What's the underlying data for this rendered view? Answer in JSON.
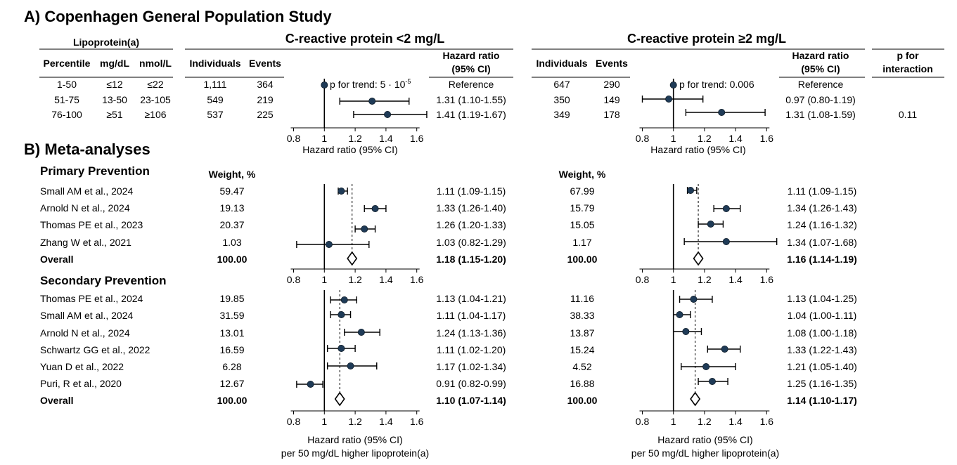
{
  "section_a": {
    "title": "A) Copenhagen General Population Study",
    "lpa_header": "Lipoprotein(a)",
    "col_percentile": "Percentile",
    "col_mgdl": "mg/dL",
    "col_nmol": "nmol/L",
    "panel_left_title": "C-reactive protein <2 mg/L",
    "panel_right_title": "C-reactive protein ≥2 mg/L",
    "col_individuals": "Individuals",
    "col_events": "Events",
    "col_hr_line1": "Hazard ratio",
    "col_hr_line2": "(95% CI)",
    "col_pint_line1": "p for",
    "col_pint_line2": "interaction",
    "ptrend_left": "p for trend: 5 · 10",
    "ptrend_left_exp": "-5",
    "ptrend_right": "p for trend: 0.006",
    "p_interaction": "0.11",
    "xlabel": "Hazard ratio (95% CI)",
    "rows": [
      {
        "percentile": "1-50",
        "mgdl": "≤12",
        "nmol": "≤22",
        "l_ind": "1,111",
        "l_ev": "364",
        "l_hr": "Reference",
        "r_ind": "647",
        "r_ev": "290",
        "r_hr": "Reference"
      },
      {
        "percentile": "51-75",
        "mgdl": "13-50",
        "nmol": "23-105",
        "l_ind": "549",
        "l_ev": "219",
        "l_hr": "1.31 (1.10-1.55)",
        "r_ind": "350",
        "r_ev": "149",
        "r_hr": "0.97 (0.80-1.19)"
      },
      {
        "percentile": "76-100",
        "mgdl": "≥51",
        "nmol": "≥106",
        "l_ind": "537",
        "l_ev": "225",
        "l_hr": "1.41 (1.19-1.67)",
        "r_ind": "349",
        "r_ev": "178",
        "r_hr": "1.31 (1.08-1.59)"
      }
    ]
  },
  "section_b": {
    "title": "B) Meta-analyses",
    "weight_header": "Weight, %",
    "primary_title": "Primary Prevention",
    "secondary_title": "Secondary Prevention",
    "xlabel_line1": "Hazard ratio (95% CI)",
    "xlabel_line2": "per 50 mg/dL higher lipoprotein(a)",
    "primary": [
      {
        "study": "Small AM et al., 2024",
        "lw": "59.47",
        "lhr": "1.11 (1.09-1.15)",
        "rw": "67.99",
        "rhr": "1.11 (1.09-1.15)"
      },
      {
        "study": "Arnold N et al., 2024",
        "lw": "19.13",
        "lhr": "1.33 (1.26-1.40)",
        "rw": "15.79",
        "rhr": "1.34 (1.26-1.43)"
      },
      {
        "study": "Thomas PE et al., 2023",
        "lw": "20.37",
        "lhr": "1.26 (1.20-1.33)",
        "rw": "15.05",
        "rhr": "1.24 (1.16-1.32)"
      },
      {
        "study": "Zhang W et al., 2021",
        "lw": "1.03",
        "lhr": "1.03 (0.82-1.29)",
        "rw": "1.17",
        "rhr": "1.34 (1.07-1.68)"
      },
      {
        "study": "Overall",
        "lw": "100.00",
        "lhr": "1.18 (1.15-1.20)",
        "rw": "100.00",
        "rhr": "1.16 (1.14-1.19)",
        "overall": true
      }
    ],
    "secondary": [
      {
        "study": "Thomas PE et al., 2024",
        "lw": "19.85",
        "lhr": "1.13 (1.04-1.21)",
        "rw": "11.16",
        "rhr": "1.13 (1.04-1.25)"
      },
      {
        "study": "Small AM et al., 2024",
        "lw": "31.59",
        "lhr": "1.11 (1.04-1.17)",
        "rw": "38.33",
        "rhr": "1.04 (1.00-1.11)"
      },
      {
        "study": "Arnold N et al., 2024",
        "lw": "13.01",
        "lhr": "1.24 (1.13-1.36)",
        "rw": "13.87",
        "rhr": "1.08 (1.00-1.18)"
      },
      {
        "study": "Schwartz GG et al., 2022",
        "lw": "16.59",
        "lhr": "1.11 (1.02-1.20)",
        "rw": "15.24",
        "rhr": "1.33 (1.22-1.43)"
      },
      {
        "study": "Yuan  D et al., 2022",
        "lw": "6.28",
        "lhr": "1.17 (1.02-1.34)",
        "rw": "4.52",
        "rhr": "1.21 (1.05-1.40)"
      },
      {
        "study": "Puri, R et al., 2020",
        "lw": "12.67",
        "lhr": "0.91 (0.82-0.99)",
        "rw": "16.88",
        "rhr": "1.25 (1.16-1.35)"
      },
      {
        "study": "Overall",
        "lw": "100.00",
        "lhr": "1.10 (1.07-1.14)",
        "rw": "100.00",
        "rhr": "1.14 (1.10-1.17)",
        "overall": true
      }
    ]
  },
  "chart_data": [
    {
      "type": "scatter",
      "subtype": "forest-plot",
      "panel": "A: C-reactive protein <2 mg/L",
      "xlabel": "Hazard ratio (95% CI)",
      "xlim": [
        0.8,
        1.6
      ],
      "xticks": [
        "0.8",
        "1",
        "1.2",
        "1.4",
        "1.6"
      ],
      "reference_line": 1,
      "categories": [
        "1-50",
        "51-75",
        "76-100"
      ],
      "points": [
        {
          "est": 1.0,
          "lo": 1.0,
          "hi": 1.0
        },
        {
          "est": 1.31,
          "lo": 1.1,
          "hi": 1.55
        },
        {
          "est": 1.41,
          "lo": 1.19,
          "hi": 1.67
        }
      ]
    },
    {
      "type": "scatter",
      "subtype": "forest-plot",
      "panel": "A: C-reactive protein ≥2 mg/L",
      "xlabel": "Hazard ratio (95% CI)",
      "xlim": [
        0.8,
        1.6
      ],
      "xticks": [
        "0.8",
        "1",
        "1.2",
        "1.4",
        "1.6"
      ],
      "reference_line": 1,
      "categories": [
        "1-50",
        "51-75",
        "76-100"
      ],
      "points": [
        {
          "est": 1.0,
          "lo": 1.0,
          "hi": 1.0
        },
        {
          "est": 0.97,
          "lo": 0.8,
          "hi": 1.19
        },
        {
          "est": 1.31,
          "lo": 1.08,
          "hi": 1.59
        }
      ]
    },
    {
      "type": "scatter",
      "subtype": "forest-plot",
      "panel": "B: Primary Prevention, C-reactive protein <2 mg/L",
      "xlim": [
        0.8,
        1.6
      ],
      "xticks": [
        "0.8",
        "1",
        "1.2",
        "1.4",
        "1.6"
      ],
      "reference_line": 1,
      "overall_line": 1.18,
      "categories": [
        "Small AM et al., 2024",
        "Arnold N et al., 2024",
        "Thomas PE et al., 2023",
        "Zhang W et al., 2021"
      ],
      "points": [
        {
          "est": 1.11,
          "lo": 1.09,
          "hi": 1.15
        },
        {
          "est": 1.33,
          "lo": 1.26,
          "hi": 1.4
        },
        {
          "est": 1.26,
          "lo": 1.2,
          "hi": 1.33
        },
        {
          "est": 1.03,
          "lo": 0.82,
          "hi": 1.29
        }
      ],
      "overall": {
        "est": 1.18,
        "lo": 1.15,
        "hi": 1.2
      }
    },
    {
      "type": "scatter",
      "subtype": "forest-plot",
      "panel": "B: Primary Prevention, C-reactive protein ≥2 mg/L",
      "xlim": [
        0.8,
        1.6
      ],
      "xticks": [
        "0.8",
        "1",
        "1.2",
        "1.4",
        "1.6"
      ],
      "reference_line": 1,
      "overall_line": 1.16,
      "categories": [
        "Small AM et al., 2024",
        "Arnold N et al., 2024",
        "Thomas PE et al., 2023",
        "Zhang W et al., 2021"
      ],
      "points": [
        {
          "est": 1.11,
          "lo": 1.09,
          "hi": 1.15
        },
        {
          "est": 1.34,
          "lo": 1.26,
          "hi": 1.43
        },
        {
          "est": 1.24,
          "lo": 1.16,
          "hi": 1.32
        },
        {
          "est": 1.34,
          "lo": 1.07,
          "hi": 1.68
        }
      ],
      "overall": {
        "est": 1.16,
        "lo": 1.14,
        "hi": 1.19
      }
    },
    {
      "type": "scatter",
      "subtype": "forest-plot",
      "panel": "B: Secondary Prevention, C-reactive protein <2 mg/L",
      "xlabel": "Hazard ratio (95% CI) per 50 mg/dL higher lipoprotein(a)",
      "xlim": [
        0.8,
        1.6
      ],
      "xticks": [
        "0.8",
        "1",
        "1.2",
        "1.4",
        "1.6"
      ],
      "reference_line": 1,
      "overall_line": 1.1,
      "categories": [
        "Thomas PE et al., 2024",
        "Small AM et al., 2024",
        "Arnold N et al., 2024",
        "Schwartz GG et al., 2022",
        "Yuan  D et al., 2022",
        "Puri, R et al., 2020"
      ],
      "points": [
        {
          "est": 1.13,
          "lo": 1.04,
          "hi": 1.21
        },
        {
          "est": 1.11,
          "lo": 1.04,
          "hi": 1.17
        },
        {
          "est": 1.24,
          "lo": 1.13,
          "hi": 1.36
        },
        {
          "est": 1.11,
          "lo": 1.02,
          "hi": 1.2
        },
        {
          "est": 1.17,
          "lo": 1.02,
          "hi": 1.34
        },
        {
          "est": 0.91,
          "lo": 0.82,
          "hi": 0.99
        }
      ],
      "overall": {
        "est": 1.1,
        "lo": 1.07,
        "hi": 1.14
      }
    },
    {
      "type": "scatter",
      "subtype": "forest-plot",
      "panel": "B: Secondary Prevention, C-reactive protein ≥2 mg/L",
      "xlabel": "Hazard ratio (95% CI) per 50 mg/dL higher lipoprotein(a)",
      "xlim": [
        0.8,
        1.6
      ],
      "xticks": [
        "0.8",
        "1",
        "1.2",
        "1.4",
        "1.6"
      ],
      "reference_line": 1,
      "overall_line": 1.14,
      "categories": [
        "Thomas PE et al., 2024",
        "Small AM et al., 2024",
        "Arnold N et al., 2024",
        "Schwartz GG et al., 2022",
        "Yuan  D et al., 2022",
        "Puri, R et al., 2020"
      ],
      "points": [
        {
          "est": 1.13,
          "lo": 1.04,
          "hi": 1.25
        },
        {
          "est": 1.04,
          "lo": 1.0,
          "hi": 1.11
        },
        {
          "est": 1.08,
          "lo": 1.0,
          "hi": 1.18
        },
        {
          "est": 1.33,
          "lo": 1.22,
          "hi": 1.43
        },
        {
          "est": 1.21,
          "lo": 1.05,
          "hi": 1.4
        },
        {
          "est": 1.25,
          "lo": 1.16,
          "hi": 1.35
        }
      ],
      "overall": {
        "est": 1.14,
        "lo": 1.1,
        "hi": 1.17
      }
    }
  ],
  "colors": {
    "point": "#1f3b57",
    "line": "#000000"
  }
}
